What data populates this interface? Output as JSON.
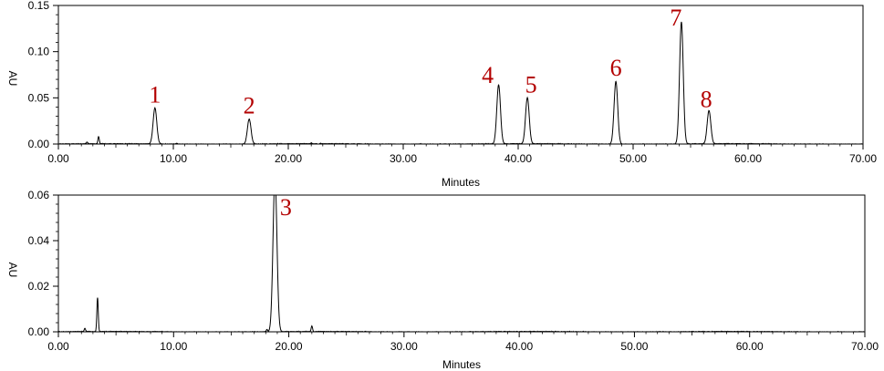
{
  "chart_data": [
    {
      "type": "line",
      "xlabel": "Minutes",
      "ylabel": "AU",
      "xlim": [
        0,
        70
      ],
      "ylim": [
        0,
        0.15
      ],
      "x_ticks": [
        "0.00",
        "10.00",
        "20.00",
        "30.00",
        "40.00",
        "50.00",
        "60.00",
        "70.00"
      ],
      "y_ticks": [
        "0.00",
        "0.05",
        "0.10",
        "0.15"
      ],
      "baseline": 0.0,
      "peaks": [
        {
          "label": "1",
          "x": 8.4,
          "y": 0.039
        },
        {
          "label": "2",
          "x": 16.6,
          "y": 0.027
        },
        {
          "label": "4",
          "x": 38.3,
          "y": 0.064
        },
        {
          "label": "5",
          "x": 40.8,
          "y": 0.05
        },
        {
          "label": "6",
          "x": 48.5,
          "y": 0.068
        },
        {
          "label": "7",
          "x": 54.2,
          "y": 0.132
        },
        {
          "label": "8",
          "x": 56.6,
          "y": 0.036
        }
      ],
      "minor_features": [
        {
          "x": 2.5,
          "y": 0.002
        },
        {
          "x": 3.5,
          "y": 0.008
        },
        {
          "x": 10.3,
          "y": 0.001
        },
        {
          "x": 22.0,
          "y": 0.001
        }
      ]
    },
    {
      "type": "line",
      "xlabel": "Minutes",
      "ylabel": "AU",
      "xlim": [
        0,
        70
      ],
      "ylim": [
        0,
        0.06
      ],
      "x_ticks": [
        "0.00",
        "10.00",
        "20.00",
        "30.00",
        "40.00",
        "50.00",
        "60.00",
        "70.00"
      ],
      "y_ticks": [
        "0.00",
        "0.02",
        "0.04",
        "0.06"
      ],
      "baseline": 0.0,
      "peaks": [
        {
          "label": "3",
          "x": 18.8,
          "y": 0.068
        }
      ],
      "minor_features": [
        {
          "x": 2.3,
          "y": 0.0015
        },
        {
          "x": 3.4,
          "y": 0.015
        },
        {
          "x": 18.1,
          "y": 0.001
        },
        {
          "x": 22.0,
          "y": 0.0025
        }
      ]
    }
  ]
}
